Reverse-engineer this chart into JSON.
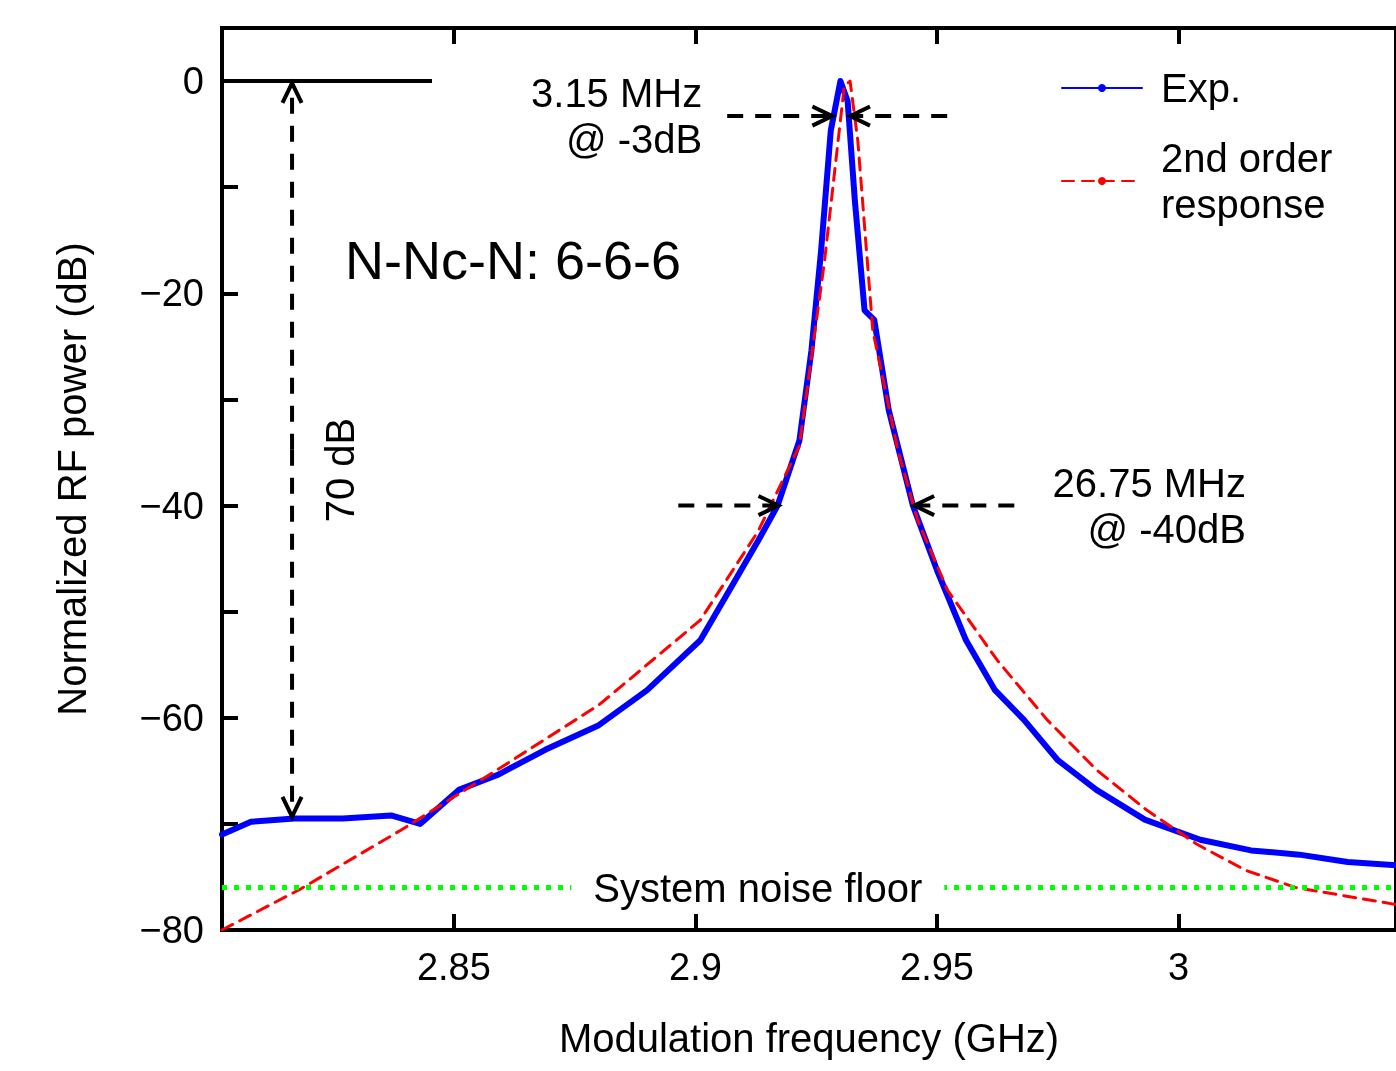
{
  "chart_data": {
    "type": "line",
    "xlabel": "Modulation frequency (GHz)",
    "ylabel": "Normalized RF power (dB)",
    "xlim": [
      2.802,
      3.045
    ],
    "xticks": [
      2.85,
      2.9,
      2.95,
      3
    ],
    "ylim": [
      -80,
      5
    ],
    "yticks": [
      -80,
      {
        "value": -70,
        "label": null
      },
      -60,
      {
        "value": -50,
        "label": null
      },
      -40,
      {
        "value": -30,
        "label": null
      },
      -20,
      {
        "value": -10,
        "label": null
      },
      0
    ],
    "grid": false,
    "legend": "top right",
    "marker": "none",
    "series": [
      {
        "name": "Exp.",
        "color": "#0000ff",
        "line_style": "solid",
        "x": [
          2.802,
          2.808,
          2.817,
          2.827,
          2.837,
          2.843,
          2.851,
          2.859,
          2.869,
          2.88,
          2.89,
          2.901,
          2.907,
          2.913,
          2.917,
          2.9215,
          2.924,
          2.926,
          2.928,
          2.93,
          2.9315,
          2.933,
          2.935,
          2.937,
          2.94,
          2.945,
          2.95,
          2.956,
          2.962,
          2.968,
          2.975,
          2.983,
          2.993,
          3.0045,
          3.015,
          3.025,
          3.035,
          3.045
        ],
        "values": [
          -71,
          -69.8,
          -69.5,
          -69.5,
          -69.2,
          -70,
          -66.8,
          -65.4,
          -63,
          -60.7,
          -57.4,
          -52.7,
          -48,
          -43.3,
          -40,
          -33.9,
          -25.4,
          -16,
          -4.7,
          0,
          -1.9,
          -11.3,
          -21.6,
          -22.5,
          -31,
          -40,
          -46.1,
          -52.7,
          -57.4,
          -60.2,
          -64,
          -66.8,
          -69.6,
          -71.5,
          -72.5,
          -72.9,
          -73.6,
          -73.9
        ]
      },
      {
        "name": "2nd order response",
        "color": "#ff0000",
        "line_style": "dashed",
        "x": [
          2.802,
          2.818,
          2.839,
          2.859,
          2.88,
          2.901,
          2.913,
          2.9215,
          2.9267,
          2.9308,
          2.932,
          2.9336,
          2.9367,
          2.9419,
          2.946,
          2.9522,
          2.9625,
          2.9728,
          2.983,
          2.9934,
          3.0037,
          3.014,
          3.0243,
          3.045
        ],
        "values": [
          -80,
          -76.2,
          -70.6,
          -64.9,
          -58.8,
          -50.8,
          -42.4,
          -34.4,
          -17,
          -0.5,
          0,
          -5.6,
          -23.5,
          -34.8,
          -41.4,
          -48,
          -54.6,
          -60.2,
          -64.9,
          -68.7,
          -71.9,
          -74.4,
          -76,
          -77.6
        ]
      }
    ],
    "ref_lines": [
      {
        "axis": "y",
        "value": -76,
        "label": "System noise floor",
        "color": "#00ff00",
        "line_style": "dotted"
      }
    ],
    "annotations": [
      {
        "text": "3.15 MHz\n@ -3dB",
        "x": 2.9283,
        "y": -3.3
      },
      {
        "text": "26.75 MHz\n@ -40dB",
        "x": 2.9453,
        "y": -40
      },
      "N-Nc-N: 6-6-6",
      {
        "text": "70 dB",
        "x": 2.8165,
        "y": -69.5
      }
    ]
  }
}
